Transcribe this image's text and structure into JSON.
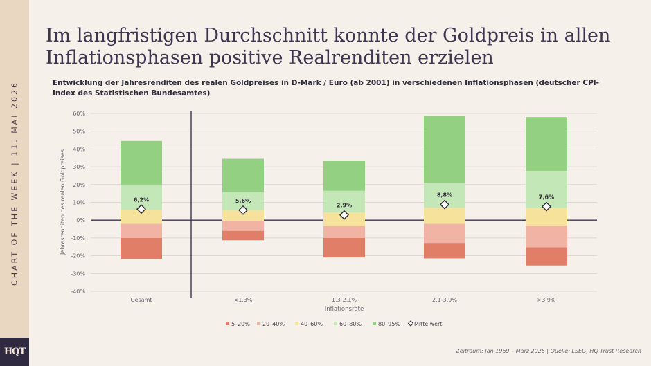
{
  "sidebar": {
    "text": "CHART OF THE WEEK | 11. MAI 2026",
    "logo": "HQT",
    "logo_name": "hq-trust-logo"
  },
  "header": {
    "title": "Im langfristigen Durchschnitt konnte der Goldpreis in allen Inflationsphasen positive Realrenditen erzielen",
    "subtitle": "Entwicklung der Jahresrenditen des realen Goldpreises in D-Mark / Euro (ab 2001) in verschiedenen Inflationsphasen (deutscher CPI-Index des Statistischen Bundesamtes)"
  },
  "footer": {
    "source": "Zeitraum: Jan 1969 – März 2026 | Quelle: LSEG, HQ Trust Research"
  },
  "chart_data": {
    "type": "bar",
    "subtype": "floating-stacked-percentile-bands",
    "xlabel": "Inflationsrate",
    "ylabel": "Jahresrenditen des realen Goldpreises",
    "ylim": [
      -40,
      60
    ],
    "yticks": [
      -40,
      -30,
      -20,
      -10,
      0,
      10,
      20,
      30,
      40,
      50,
      60
    ],
    "ytick_suffix": "%",
    "grid": true,
    "legend_position": "bottom",
    "categories": [
      "Gesamt",
      "<1,3%",
      "1,3-2,1%",
      "2,1-3,9%",
      ">3,9%"
    ],
    "bands": [
      {
        "name": "5–20%",
        "color": "#e07e68",
        "ranges": [
          [
            -21.8,
            -10.0
          ],
          [
            -11.3,
            -6.0
          ],
          [
            -21.0,
            -10.0
          ],
          [
            -21.5,
            -12.8
          ],
          [
            -25.5,
            -15.3
          ]
        ]
      },
      {
        "name": "20–40%",
        "color": "#f1b4a4",
        "ranges": [
          [
            -10.0,
            -2.0
          ],
          [
            -6.0,
            -0.4
          ],
          [
            -10.0,
            -3.3
          ],
          [
            -12.8,
            -2.0
          ],
          [
            -15.3,
            -3.0
          ]
        ]
      },
      {
        "name": "40–60%",
        "color": "#f6e29b",
        "ranges": [
          [
            -2.0,
            5.7
          ],
          [
            -0.4,
            5.4
          ],
          [
            -3.3,
            4.3
          ],
          [
            -2.0,
            7.0
          ],
          [
            -3.0,
            6.8
          ]
        ]
      },
      {
        "name": "60–80%",
        "color": "#c4e7b8",
        "ranges": [
          [
            5.7,
            20.0
          ],
          [
            5.4,
            16.0
          ],
          [
            4.3,
            16.5
          ],
          [
            7.0,
            21.0
          ],
          [
            6.8,
            27.7
          ]
        ]
      },
      {
        "name": "80–95%",
        "color": "#93d081",
        "ranges": [
          [
            20.0,
            44.5
          ],
          [
            16.0,
            34.5
          ],
          [
            16.5,
            33.5
          ],
          [
            21.0,
            58.5
          ],
          [
            27.7,
            58.0
          ]
        ]
      }
    ],
    "mean": {
      "name": "Mittelwert",
      "values": [
        6.2,
        5.6,
        2.9,
        8.8,
        7.6
      ],
      "labels": [
        "6,2%",
        "5,6%",
        "2,9%",
        "8,8%",
        "7,6%"
      ]
    }
  }
}
